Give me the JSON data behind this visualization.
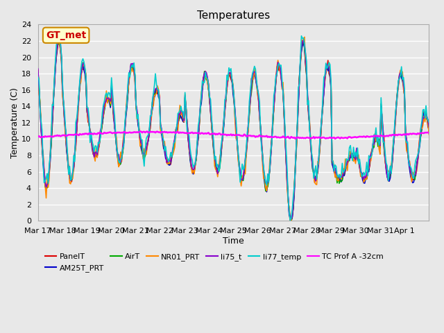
{
  "title": "Temperatures",
  "xlabel": "Time",
  "ylabel": "Temperature (C)",
  "ylim": [
    0,
    24
  ],
  "yticks": [
    0,
    2,
    4,
    6,
    8,
    10,
    12,
    14,
    16,
    18,
    20,
    22,
    24
  ],
  "xtick_labels": [
    "Mar 17",
    "Mar 18",
    "Mar 19",
    "Mar 20",
    "Mar 21",
    "Mar 22",
    "Mar 23",
    "Mar 24",
    "Mar 25",
    "Mar 26",
    "Mar 27",
    "Mar 28",
    "Mar 29",
    "Mar 30",
    "Mar 31",
    "Apr 1"
  ],
  "n_days": 16,
  "annotation_text": "GT_met",
  "annotation_bg": "#ffffcc",
  "annotation_border": "#cc8800",
  "annotation_text_color": "#cc0000",
  "bg_color": "#e8e8e8",
  "plot_bg_color": "#e8e8e8",
  "grid_color": "#ffffff",
  "series_PanelT_color": "#dd0000",
  "series_AM25T_PRT_color": "#0000cc",
  "series_AirT_color": "#00aa00",
  "series_NR01_PRT_color": "#ff8800",
  "series_li75_t_color": "#8800cc",
  "series_li77_temp_color": "#00cccc",
  "series_TC_color": "#ff00ff",
  "line_lw": 1.2,
  "tc_lw": 1.8,
  "day_peaks": [
    22,
    19,
    15,
    19,
    16,
    13,
    18,
    18,
    18,
    19,
    22,
    19,
    8,
    10,
    18,
    13
  ],
  "day_troughs": [
    4,
    5,
    8,
    7,
    8,
    7,
    6,
    6,
    5,
    4,
    0,
    5,
    5,
    5,
    5,
    5
  ]
}
